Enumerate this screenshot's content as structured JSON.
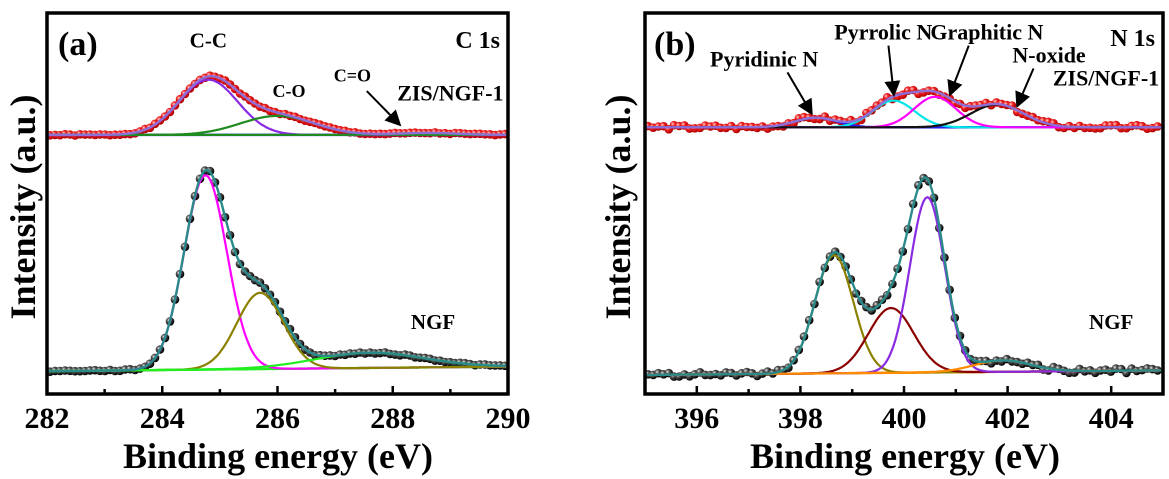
{
  "chart_data": [
    {
      "type": "line",
      "panel_label": "(a)",
      "title": "C 1s",
      "xlabel": "Binding energy (eV)",
      "ylabel": "Intensity (a.u.)",
      "xlim": [
        282,
        290
      ],
      "xticks": [
        "282",
        "284",
        "286",
        "288",
        "290"
      ],
      "xtick_values": [
        282,
        284,
        286,
        288,
        290
      ],
      "ylim": [
        0,
        1
      ],
      "grid": false,
      "stacks": [
        {
          "name": "ZIS/NGF-1",
          "label": "ZIS/NGF-1",
          "offset": 0.68,
          "data_color": "#e8191b",
          "fit_color": "#8e6fd8",
          "baseline_color": "#1f1fff",
          "components": [
            {
              "name": "C-C",
              "center": 284.8,
              "height": 0.145,
              "width": 0.75,
              "color": "#8a2be2"
            },
            {
              "name": "C-O",
              "center": 286.0,
              "height": 0.05,
              "width": 0.95,
              "color": "#1f8a1f"
            },
            {
              "name": "C=O",
              "center": 288.6,
              "height": 0.005,
              "width": 0.8,
              "color": "#1f8a1f"
            }
          ]
        },
        {
          "name": "NGF",
          "label": "NGF",
          "offset": 0.06,
          "data_color": "#111111",
          "fit_color": "#2a8a8a",
          "baseline_color": "#22ee22",
          "components": [
            {
              "name": "C-C",
              "center": 284.75,
              "height": 0.51,
              "width": 0.55,
              "color": "#ff00ff"
            },
            {
              "name": "C-O",
              "center": 285.7,
              "height": 0.2,
              "width": 0.6,
              "color": "#8b8000"
            },
            {
              "name": "pi-pi*",
              "center": 287.6,
              "height": 0.04,
              "width": 1.4,
              "color": "#22ee22"
            }
          ]
        }
      ],
      "annotations": [
        {
          "text": "C-C",
          "x": 284.8,
          "y": 0.91
        },
        {
          "text": "C-O",
          "x": 286.2,
          "y": 0.78
        },
        {
          "text": "C=O",
          "x": 287.3,
          "y": 0.82
        },
        {
          "text": "ZIS/NGF-1",
          "x": 289.0,
          "y": 0.77
        },
        {
          "text": "NGF",
          "x": 288.7,
          "y": 0.17
        }
      ]
    },
    {
      "type": "line",
      "panel_label": "(b)",
      "title": "N 1s",
      "xlabel": "Binding energy (eV)",
      "ylabel": "Intensity (a.u.)",
      "xlim": [
        395,
        405
      ],
      "xticks": [
        "396",
        "398",
        "400",
        "402",
        "404"
      ],
      "xtick_values": [
        396,
        398,
        400,
        402,
        404
      ],
      "ylim": [
        0,
        1
      ],
      "grid": false,
      "stacks": [
        {
          "name": "ZIS/NGF-1",
          "label": "ZIS/NGF-1",
          "offset": 0.7,
          "data_color": "#e8191b",
          "fit_color": "#8e6fd8",
          "baseline_color": "#000080",
          "components": [
            {
              "name": "Pyridinic N",
              "center": 398.3,
              "height": 0.025,
              "width": 0.6,
              "color": "#1f1fff"
            },
            {
              "name": "Pyrrolic N",
              "center": 399.8,
              "height": 0.07,
              "width": 0.6,
              "color": "#00e5e5"
            },
            {
              "name": "Graphitic N",
              "center": 400.6,
              "height": 0.08,
              "width": 0.6,
              "color": "#ff00ff"
            },
            {
              "name": "N-oxide",
              "center": 401.8,
              "height": 0.06,
              "width": 0.75,
              "color": "#111111"
            }
          ]
        },
        {
          "name": "NGF",
          "label": "NGF",
          "offset": 0.05,
          "data_color": "#111111",
          "fit_color": "#2a8a8a",
          "baseline_color": "#ff8c00",
          "components": [
            {
              "name": "Pyridinic N",
              "center": 398.65,
              "height": 0.31,
              "width": 0.55,
              "color": "#8b8000"
            },
            {
              "name": "Pyrrolic N",
              "center": 399.75,
              "height": 0.17,
              "width": 0.65,
              "color": "#8b0000"
            },
            {
              "name": "Graphitic N",
              "center": 400.45,
              "height": 0.46,
              "width": 0.5,
              "color": "#8a2be2"
            },
            {
              "name": "N-oxide",
              "center": 401.9,
              "height": 0.03,
              "width": 0.8,
              "color": "#ff8c00"
            }
          ]
        }
      ],
      "annotations": [
        {
          "text": "Pyridinic N",
          "x": 397.3,
          "y": 0.86,
          "arrow_to": [
            398.2,
            0.74
          ]
        },
        {
          "text": "Pyrrolic N",
          "x": 399.6,
          "y": 0.93,
          "arrow_to": [
            399.8,
            0.79
          ]
        },
        {
          "text": "Graphitic N",
          "x": 401.6,
          "y": 0.93,
          "arrow_to": [
            400.9,
            0.79
          ]
        },
        {
          "text": "N-oxide",
          "x": 402.8,
          "y": 0.87,
          "arrow_to": [
            402.2,
            0.76
          ]
        },
        {
          "text": "ZIS/NGF-1",
          "x": 403.9,
          "y": 0.81
        },
        {
          "text": "NGF",
          "x": 404.0,
          "y": 0.17
        }
      ]
    }
  ]
}
